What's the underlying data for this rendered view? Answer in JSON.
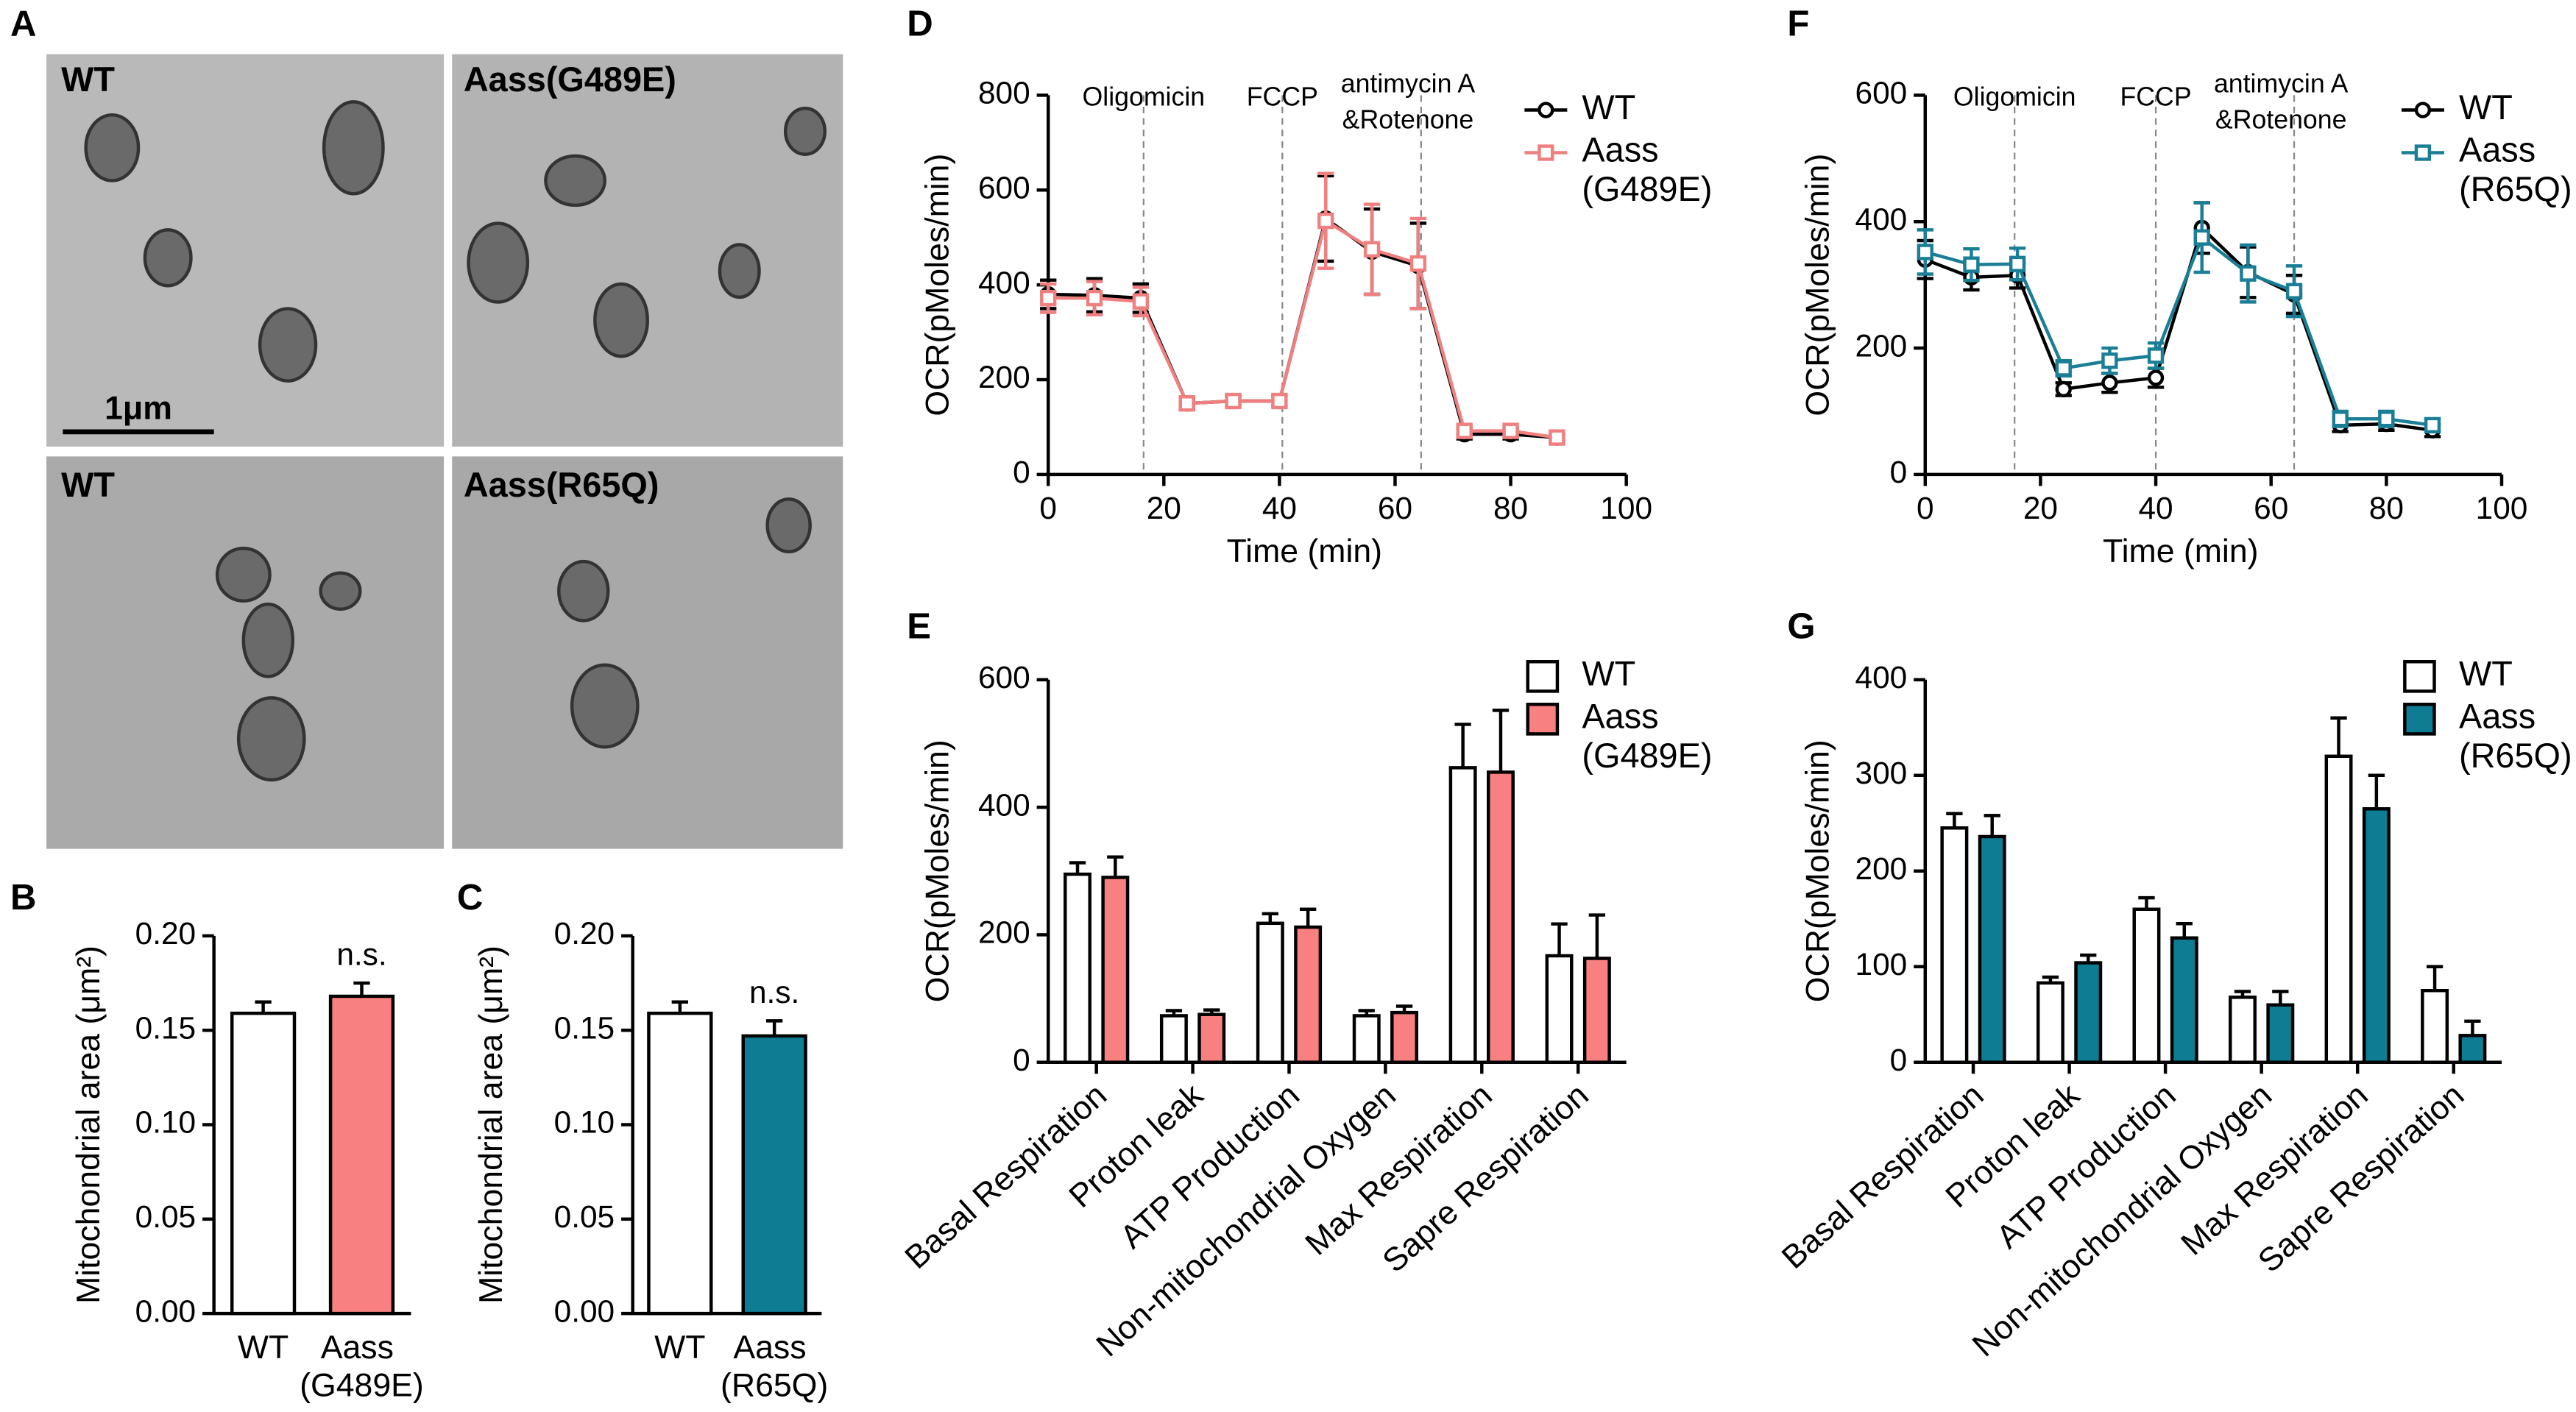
{
  "micrographs": {
    "panel": "A",
    "images": [
      {
        "label": "WT"
      },
      {
        "label": "Aass(G489E)"
      },
      {
        "label": "WT"
      },
      {
        "label": "Aass(R65Q)"
      }
    ],
    "scale_bar": "1μm"
  },
  "chart_data": [
    {
      "type": "bar",
      "panel": "B",
      "ylabel": "Mitochondrial area (μm²)",
      "categories": [
        "WT",
        "Aass (G489E)"
      ],
      "values": [
        0.159,
        0.168
      ],
      "errors": [
        0.006,
        0.007
      ],
      "colors": [
        "#ffffff",
        "#f88080"
      ],
      "annotation": "n.s.",
      "ylim": [
        0,
        0.2
      ],
      "yticks": [
        {
          "value": 0,
          "label": "0.00"
        },
        {
          "value": 0.05,
          "label": "0.05"
        },
        {
          "value": 0.1,
          "label": "0.10"
        },
        {
          "value": 0.15,
          "label": "0.15"
        },
        {
          "value": 0.2,
          "label": "0.20"
        }
      ]
    },
    {
      "type": "bar",
      "panel": "C",
      "ylabel": "Mitochondrial area (μm²)",
      "categories": [
        "WT",
        "Aass (R65Q)"
      ],
      "values": [
        0.159,
        0.147
      ],
      "errors": [
        0.006,
        0.008
      ],
      "colors": [
        "#ffffff",
        "#0e7c93"
      ],
      "annotation": "n.s.",
      "ylim": [
        0,
        0.2
      ],
      "yticks": [
        {
          "value": 0,
          "label": "0.00"
        },
        {
          "value": 0.05,
          "label": "0.05"
        },
        {
          "value": 0.1,
          "label": "0.10"
        },
        {
          "value": 0.15,
          "label": "0.15"
        },
        {
          "value": 0.2,
          "label": "0.20"
        }
      ]
    },
    {
      "type": "line",
      "panel": "D",
      "xlabel": "Time (min)",
      "ylabel": "OCR(pMoles/min)",
      "x": [
        0,
        8,
        16,
        24,
        32,
        40,
        48,
        56,
        64,
        72,
        80,
        88
      ],
      "series": [
        {
          "name": "WT",
          "color": "#000000",
          "marker": "circle",
          "values": [
            380,
            378,
            372,
            150,
            155,
            155,
            540,
            470,
            440,
            85,
            85,
            78
          ],
          "errors": [
            30,
            35,
            30,
            10,
            10,
            10,
            90,
            90,
            90,
            10,
            10,
            8
          ]
        },
        {
          "name": "Aass (G489E)",
          "color": "#f08080",
          "marker": "square",
          "values": [
            372,
            372,
            365,
            150,
            155,
            155,
            535,
            475,
            445,
            92,
            92,
            78
          ],
          "errors": [
            30,
            35,
            30,
            10,
            10,
            10,
            100,
            95,
            95,
            10,
            10,
            8
          ]
        }
      ],
      "annotations": [
        {
          "x": 16.5,
          "lines": [
            "Oligomicin"
          ]
        },
        {
          "x": 40.5,
          "lines": [
            "FCCP"
          ]
        },
        {
          "x": 64.5,
          "lines": [
            "antimycin A",
            "&Rotenone"
          ]
        }
      ],
      "xlim": [
        0,
        100
      ],
      "xticks": [
        0,
        20,
        40,
        60,
        80,
        100
      ],
      "ylim": [
        0,
        800
      ],
      "yticks": [
        0,
        200,
        400,
        600,
        800
      ]
    },
    {
      "type": "bar",
      "panel": "E",
      "ylabel": "OCR(pMoles/min)",
      "categories": [
        "Basal Respiration",
        "Proton leak",
        "ATP Production",
        "Non-mitochondrial Oxygen",
        "Max Respiration",
        "Sapre Respiration"
      ],
      "series": [
        {
          "name": "WT",
          "color": "#ffffff",
          "values": [
            295,
            73,
            218,
            73,
            462,
            167
          ],
          "errors": [
            18,
            8,
            15,
            8,
            68,
            50
          ]
        },
        {
          "name": "Aass (G489E)",
          "color": "#f88080",
          "values": [
            290,
            75,
            212,
            78,
            455,
            163
          ],
          "errors": [
            32,
            7,
            28,
            10,
            97,
            68
          ]
        }
      ],
      "ylim": [
        0,
        600
      ],
      "yticks": [
        0,
        200,
        400,
        600
      ]
    },
    {
      "type": "line",
      "panel": "F",
      "xlabel": "Time (min)",
      "ylabel": "OCR(pMoles/min)",
      "x": [
        0,
        8,
        16,
        24,
        32,
        40,
        48,
        56,
        64,
        72,
        80,
        88
      ],
      "series": [
        {
          "name": "WT",
          "color": "#000000",
          "marker": "circle",
          "values": [
            340,
            312,
            315,
            135,
            145,
            153,
            390,
            320,
            285,
            78,
            80,
            70
          ],
          "errors": [
            30,
            20,
            20,
            10,
            15,
            15,
            40,
            40,
            30,
            10,
            10,
            10
          ]
        },
        {
          "name": "Aass (R65Q)",
          "color": "#1a7f96",
          "marker": "square",
          "values": [
            352,
            332,
            333,
            168,
            180,
            188,
            375,
            318,
            290,
            88,
            88,
            78
          ],
          "errors": [
            35,
            25,
            25,
            12,
            20,
            20,
            55,
            45,
            40,
            12,
            12,
            10
          ]
        }
      ],
      "annotations": [
        {
          "x": 15.5,
          "lines": [
            "Oligomicin"
          ]
        },
        {
          "x": 40,
          "lines": [
            "FCCP"
          ]
        },
        {
          "x": 64,
          "lines": [
            "antimycin A",
            "&Rotenone"
          ]
        }
      ],
      "xlim": [
        0,
        100
      ],
      "xticks": [
        0,
        20,
        40,
        60,
        80,
        100
      ],
      "ylim": [
        0,
        600
      ],
      "yticks": [
        0,
        200,
        400,
        600
      ]
    },
    {
      "type": "bar",
      "panel": "G",
      "ylabel": "OCR(pMoles/min)",
      "categories": [
        "Basal Respiration",
        "Proton leak",
        "ATP Production",
        "Non-mitochondrial Oxygen",
        "Max Respiration",
        "Sapre Respiration"
      ],
      "series": [
        {
          "name": "WT",
          "color": "#ffffff",
          "values": [
            245,
            83,
            160,
            68,
            320,
            75
          ],
          "errors": [
            15,
            6,
            12,
            6,
            40,
            25
          ]
        },
        {
          "name": "Aass (R65Q)",
          "color": "#0e7c93",
          "values": [
            236,
            104,
            130,
            60,
            265,
            28
          ],
          "errors": [
            22,
            8,
            15,
            14,
            35,
            15
          ]
        }
      ],
      "ylim": [
        0,
        400
      ],
      "yticks": [
        0,
        100,
        200,
        300,
        400
      ]
    }
  ]
}
